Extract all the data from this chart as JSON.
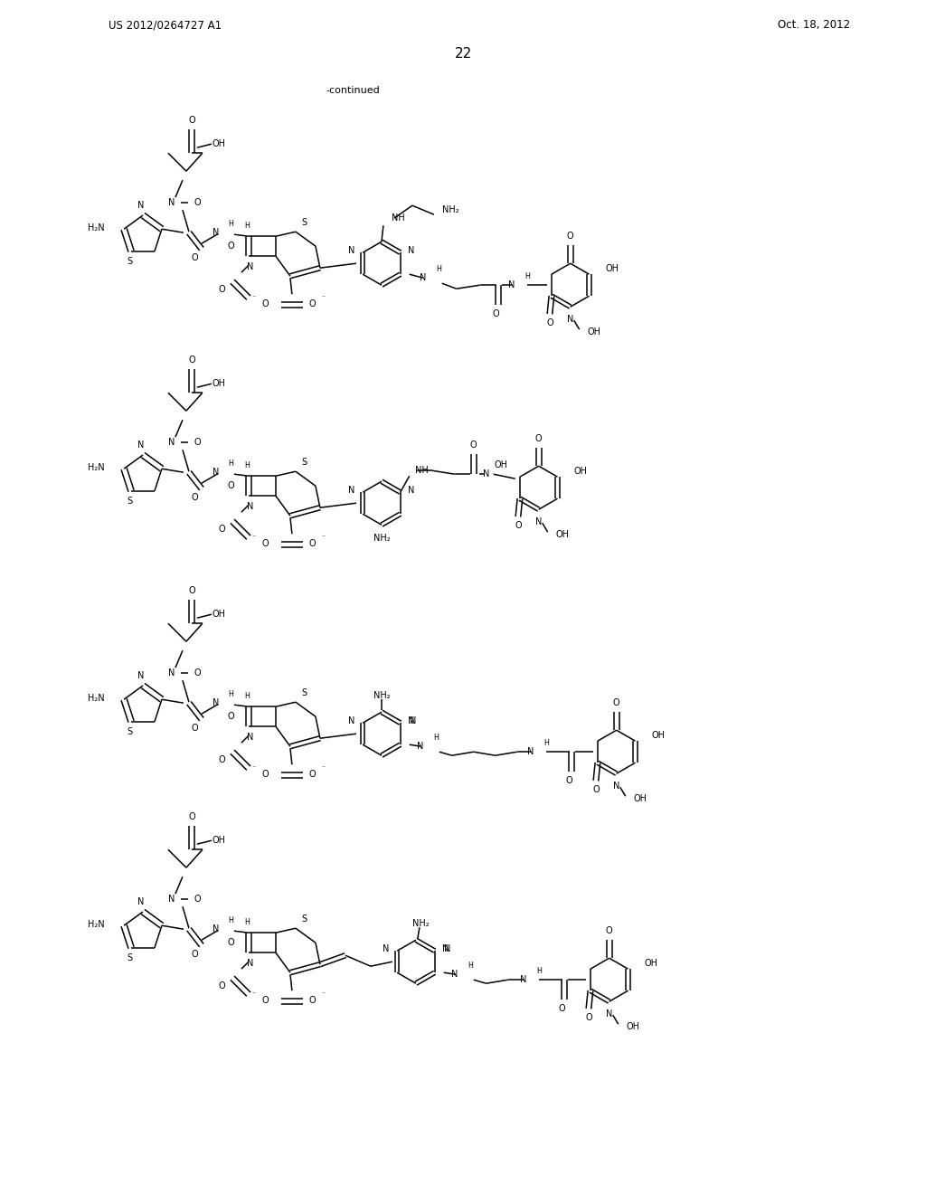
{
  "patent_number": "US 2012/0264727 A1",
  "patent_date": "Oct. 18, 2012",
  "page_number": "22",
  "continued": "-continued",
  "bg_color": "#ffffff",
  "lw": 1.1,
  "fs": 7.0,
  "fs_small": 5.8
}
